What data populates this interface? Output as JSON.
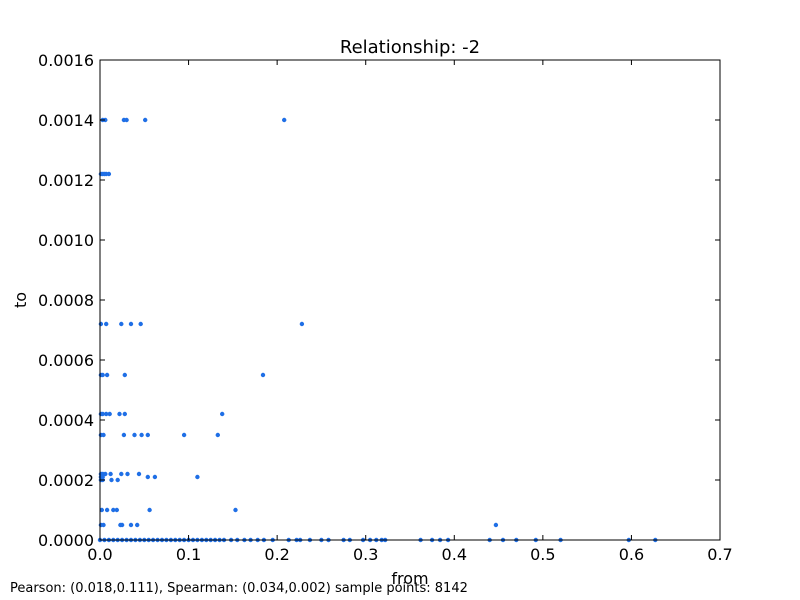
{
  "chart_data": {
    "type": "scatter",
    "title": "Relationship: -2",
    "xlabel": "from",
    "ylabel": "to",
    "xlim": [
      0,
      0.7
    ],
    "ylim": [
      0,
      0.0016
    ],
    "xticks": [
      "0.0",
      "0.1",
      "0.2",
      "0.3",
      "0.4",
      "0.5",
      "0.6",
      "0.7"
    ],
    "yticks": [
      "0.0000",
      "0.0002",
      "0.0004",
      "0.0006",
      "0.0008",
      "0.0010",
      "0.0012",
      "0.0014",
      "0.0016"
    ],
    "grid": false,
    "marker_color": "#1f6fe6",
    "points": [
      [
        0.003,
        0.0014
      ],
      [
        0.006,
        0.0014
      ],
      [
        0.027,
        0.0014
      ],
      [
        0.03,
        0.0014
      ],
      [
        0.051,
        0.0014
      ],
      [
        0.208,
        0.0014
      ],
      [
        0.001,
        0.00122
      ],
      [
        0.003,
        0.00122
      ],
      [
        0.005,
        0.00122
      ],
      [
        0.007,
        0.00122
      ],
      [
        0.01,
        0.00122
      ],
      [
        0.001,
        0.00072
      ],
      [
        0.007,
        0.00072
      ],
      [
        0.024,
        0.00072
      ],
      [
        0.035,
        0.00072
      ],
      [
        0.046,
        0.00072
      ],
      [
        0.228,
        0.00072
      ],
      [
        0.001,
        0.00055
      ],
      [
        0.003,
        0.00055
      ],
      [
        0.008,
        0.00055
      ],
      [
        0.028,
        0.00055
      ],
      [
        0.184,
        0.00055
      ],
      [
        0.001,
        0.00042
      ],
      [
        0.003,
        0.00042
      ],
      [
        0.007,
        0.00042
      ],
      [
        0.011,
        0.00042
      ],
      [
        0.022,
        0.00042
      ],
      [
        0.028,
        0.00042
      ],
      [
        0.138,
        0.00042
      ],
      [
        0.001,
        0.00035
      ],
      [
        0.004,
        0.00035
      ],
      [
        0.027,
        0.00035
      ],
      [
        0.039,
        0.00035
      ],
      [
        0.047,
        0.00035
      ],
      [
        0.054,
        0.00035
      ],
      [
        0.095,
        0.00035
      ],
      [
        0.133,
        0.00035
      ],
      [
        0.001,
        0.00022
      ],
      [
        0.003,
        0.00022
      ],
      [
        0.006,
        0.00022
      ],
      [
        0.012,
        0.00022
      ],
      [
        0.024,
        0.00022
      ],
      [
        0.031,
        0.00022
      ],
      [
        0.044,
        0.00022
      ],
      [
        0.001,
        0.00021
      ],
      [
        0.003,
        0.00021
      ],
      [
        0.054,
        0.00021
      ],
      [
        0.062,
        0.00021
      ],
      [
        0.11,
        0.00021
      ],
      [
        0.001,
        0.0002
      ],
      [
        0.003,
        0.0002
      ],
      [
        0.013,
        0.0002
      ],
      [
        0.02,
        0.0002
      ],
      [
        0.002,
        0.0001
      ],
      [
        0.008,
        0.0001
      ],
      [
        0.015,
        0.0001
      ],
      [
        0.019,
        0.0001
      ],
      [
        0.056,
        0.0001
      ],
      [
        0.153,
        0.0001
      ],
      [
        0.001,
        5e-05
      ],
      [
        0.004,
        5e-05
      ],
      [
        0.023,
        5e-05
      ],
      [
        0.025,
        5e-05
      ],
      [
        0.035,
        5e-05
      ],
      [
        0.042,
        5e-05
      ],
      [
        0.447,
        5e-05
      ],
      [
        0.0,
        0.0
      ],
      [
        0.005,
        0.0
      ],
      [
        0.01,
        0.0
      ],
      [
        0.015,
        0.0
      ],
      [
        0.02,
        0.0
      ],
      [
        0.025,
        0.0
      ],
      [
        0.03,
        0.0
      ],
      [
        0.035,
        0.0
      ],
      [
        0.04,
        0.0
      ],
      [
        0.045,
        0.0
      ],
      [
        0.05,
        0.0
      ],
      [
        0.055,
        0.0
      ],
      [
        0.06,
        0.0
      ],
      [
        0.065,
        0.0
      ],
      [
        0.07,
        0.0
      ],
      [
        0.075,
        0.0
      ],
      [
        0.08,
        0.0
      ],
      [
        0.085,
        0.0
      ],
      [
        0.09,
        0.0
      ],
      [
        0.095,
        0.0
      ],
      [
        0.1,
        0.0
      ],
      [
        0.105,
        0.0
      ],
      [
        0.11,
        0.0
      ],
      [
        0.115,
        0.0
      ],
      [
        0.12,
        0.0
      ],
      [
        0.125,
        0.0
      ],
      [
        0.13,
        0.0
      ],
      [
        0.135,
        0.0
      ],
      [
        0.14,
        0.0
      ],
      [
        0.148,
        0.0
      ],
      [
        0.155,
        0.0
      ],
      [
        0.163,
        0.0
      ],
      [
        0.17,
        0.0
      ],
      [
        0.178,
        0.0
      ],
      [
        0.185,
        0.0
      ],
      [
        0.195,
        0.0
      ],
      [
        0.213,
        0.0
      ],
      [
        0.222,
        0.0
      ],
      [
        0.226,
        0.0
      ],
      [
        0.237,
        0.0
      ],
      [
        0.25,
        0.0
      ],
      [
        0.258,
        0.0
      ],
      [
        0.275,
        0.0
      ],
      [
        0.282,
        0.0
      ],
      [
        0.297,
        0.0
      ],
      [
        0.305,
        0.0
      ],
      [
        0.312,
        0.0
      ],
      [
        0.318,
        0.0
      ],
      [
        0.322,
        0.0
      ],
      [
        0.362,
        0.0
      ],
      [
        0.375,
        0.0
      ],
      [
        0.384,
        0.0
      ],
      [
        0.393,
        0.0
      ],
      [
        0.44,
        0.0
      ],
      [
        0.455,
        0.0
      ],
      [
        0.47,
        0.0
      ],
      [
        0.492,
        0.0
      ],
      [
        0.52,
        0.0
      ],
      [
        0.597,
        0.0
      ],
      [
        0.627,
        0.0
      ]
    ]
  },
  "footer": {
    "stats": "Pearson: (0.018,0.111), Spearman: (0.034,0.002) sample points: 8142"
  }
}
